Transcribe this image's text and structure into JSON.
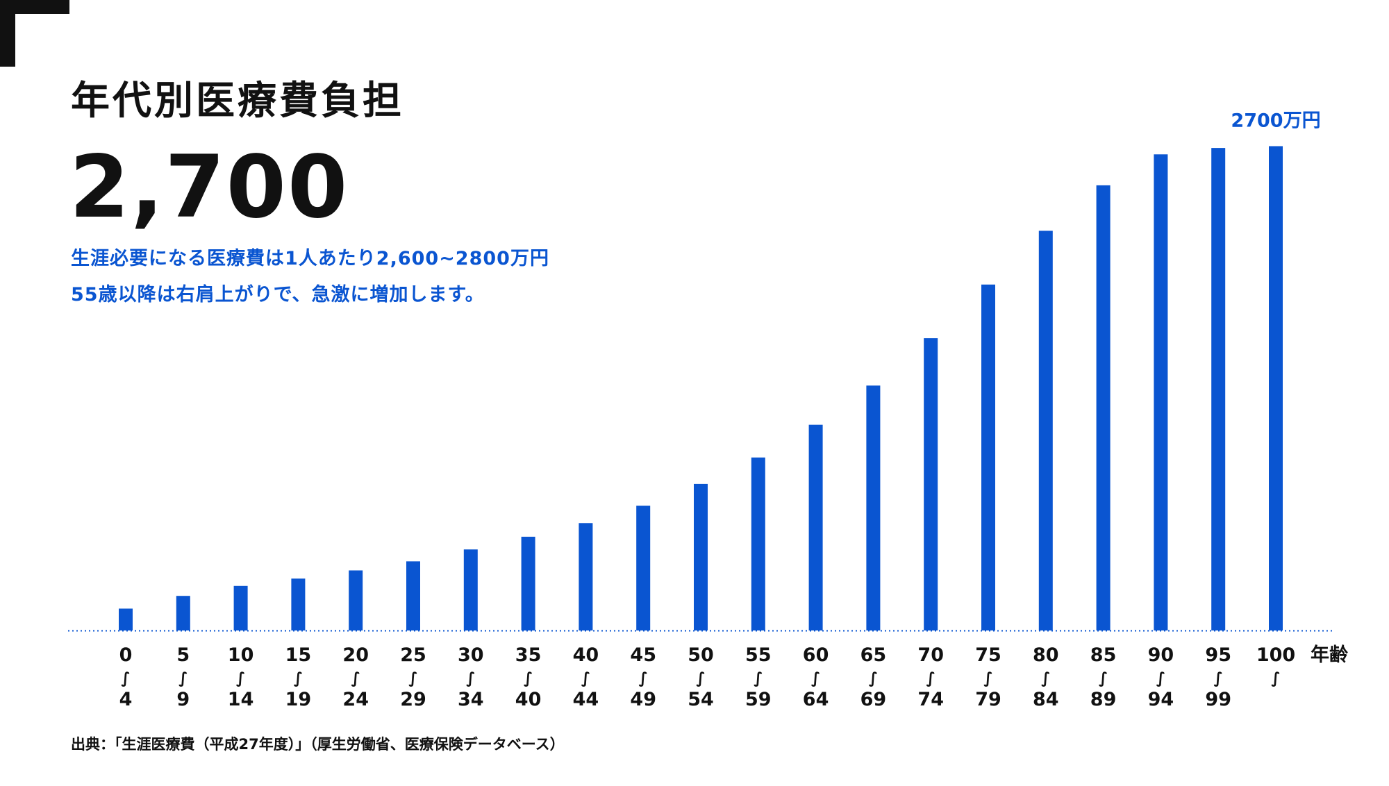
{
  "header": {
    "title": "年代別医療費負担",
    "big_number": "2,700",
    "subtitle_line1": "生涯必要になる医療費は1人あたり2,600~2800万円",
    "subtitle_line2": "55歳以降は右肩上がりで、急激に増加します。",
    "accent_color": "#0a55d1"
  },
  "source": "出典：「生涯医療費（平成27年度）」（厚生労働省、医療保険データベース）",
  "chart_data": {
    "type": "bar",
    "categories": [
      [
        "0",
        "∫",
        "4"
      ],
      [
        "5",
        "∫",
        "9"
      ],
      [
        "10",
        "∫",
        "14"
      ],
      [
        "15",
        "∫",
        "19"
      ],
      [
        "20",
        "∫",
        "24"
      ],
      [
        "25",
        "∫",
        "29"
      ],
      [
        "30",
        "∫",
        "34"
      ],
      [
        "35",
        "∫",
        "40"
      ],
      [
        "40",
        "∫",
        "44"
      ],
      [
        "45",
        "∫",
        "49"
      ],
      [
        "50",
        "∫",
        "54"
      ],
      [
        "55",
        "∫",
        "59"
      ],
      [
        "60",
        "∫",
        "64"
      ],
      [
        "65",
        "∫",
        "69"
      ],
      [
        "70",
        "∫",
        "74"
      ],
      [
        "75",
        "∫",
        "79"
      ],
      [
        "80",
        "∫",
        "84"
      ],
      [
        "85",
        "∫",
        "89"
      ],
      [
        "90",
        "∫",
        "94"
      ],
      [
        "95",
        "∫",
        "99"
      ],
      [
        "100",
        "∫"
      ]
    ],
    "values": [
      120,
      190,
      245,
      285,
      330,
      380,
      445,
      515,
      590,
      685,
      805,
      950,
      1130,
      1345,
      1605,
      1900,
      2195,
      2445,
      2615,
      2650,
      2660
    ],
    "ylim": [
      0,
      2700
    ],
    "xlabel": "年齢",
    "ylabel": "",
    "top_label": "2700万円",
    "bar_color": "#0a55d1",
    "baseline_style": "dotted",
    "grid": false
  }
}
